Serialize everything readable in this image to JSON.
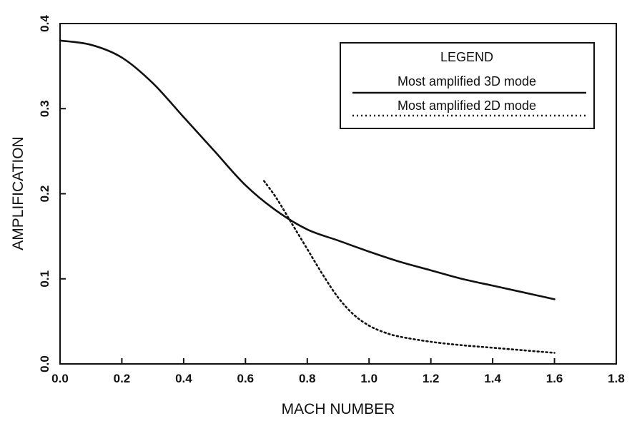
{
  "chart_data": {
    "type": "line",
    "xlabel": "MACH NUMBER",
    "ylabel": "AMPLIFICATION",
    "xlim": [
      0.0,
      1.8
    ],
    "ylim": [
      0.0,
      0.4
    ],
    "x_ticks": [
      "0.0",
      "0.2",
      "0.4",
      "0.6",
      "0.8",
      "1.0",
      "1.2",
      "1.4",
      "1.6",
      "1.8"
    ],
    "y_ticks": [
      "0.0",
      "0.1",
      "0.2",
      "0.3",
      "0.4"
    ],
    "grid": false,
    "legend": {
      "title": "LEGEND",
      "placement": "top-right",
      "entries": [
        "Most amplified 3D mode",
        "Most amplified 2D mode"
      ]
    },
    "series": [
      {
        "name": "Most amplified 3D mode",
        "style": "solid",
        "color": "#111111",
        "x": [
          0.0,
          0.1,
          0.2,
          0.3,
          0.4,
          0.5,
          0.6,
          0.7,
          0.8,
          0.9,
          1.0,
          1.1,
          1.2,
          1.3,
          1.4,
          1.5,
          1.6
        ],
        "y": [
          0.38,
          0.375,
          0.36,
          0.33,
          0.29,
          0.25,
          0.21,
          0.18,
          0.158,
          0.145,
          0.132,
          0.12,
          0.11,
          0.1,
          0.092,
          0.084,
          0.076
        ]
      },
      {
        "name": "Most amplified 2D mode",
        "style": "dotted",
        "color": "#111111",
        "x": [
          0.66,
          0.7,
          0.75,
          0.8,
          0.85,
          0.9,
          0.95,
          1.0,
          1.05,
          1.1,
          1.2,
          1.3,
          1.4,
          1.5,
          1.6
        ],
        "y": [
          0.215,
          0.195,
          0.165,
          0.135,
          0.105,
          0.078,
          0.058,
          0.045,
          0.037,
          0.032,
          0.026,
          0.022,
          0.019,
          0.016,
          0.013
        ]
      }
    ]
  }
}
